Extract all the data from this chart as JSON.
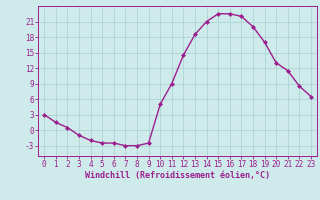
{
  "x": [
    0,
    1,
    2,
    3,
    4,
    5,
    6,
    7,
    8,
    9,
    10,
    11,
    12,
    13,
    14,
    15,
    16,
    17,
    18,
    19,
    20,
    21,
    22,
    23
  ],
  "y": [
    3,
    1.5,
    0.5,
    -1,
    -2,
    -2.5,
    -2.5,
    -3,
    -3,
    -2.5,
    5,
    9,
    14.5,
    18.5,
    21,
    22.5,
    22.5,
    22,
    20,
    17,
    13,
    11.5,
    8.5,
    6.5
  ],
  "line_color": "#9b1f8e",
  "marker": "D",
  "markersize": 2.0,
  "linewidth": 1.0,
  "bg_color": "#ceeaea",
  "grid_color": "#add4d4",
  "axis_color": "#9b1f8e",
  "tick_color": "#9b1f8e",
  "xlabel": "Windchill (Refroidissement éolien,°C)",
  "xlabel_fontsize": 6,
  "tick_fontsize": 5.5,
  "yticks": [
    -3,
    0,
    3,
    6,
    9,
    12,
    15,
    18,
    21
  ],
  "ylim": [
    -5,
    24
  ],
  "xlim": [
    -0.5,
    23.5
  ],
  "xticks": [
    0,
    1,
    2,
    3,
    4,
    5,
    6,
    7,
    8,
    9,
    10,
    11,
    12,
    13,
    14,
    15,
    16,
    17,
    18,
    19,
    20,
    21,
    22,
    23
  ]
}
